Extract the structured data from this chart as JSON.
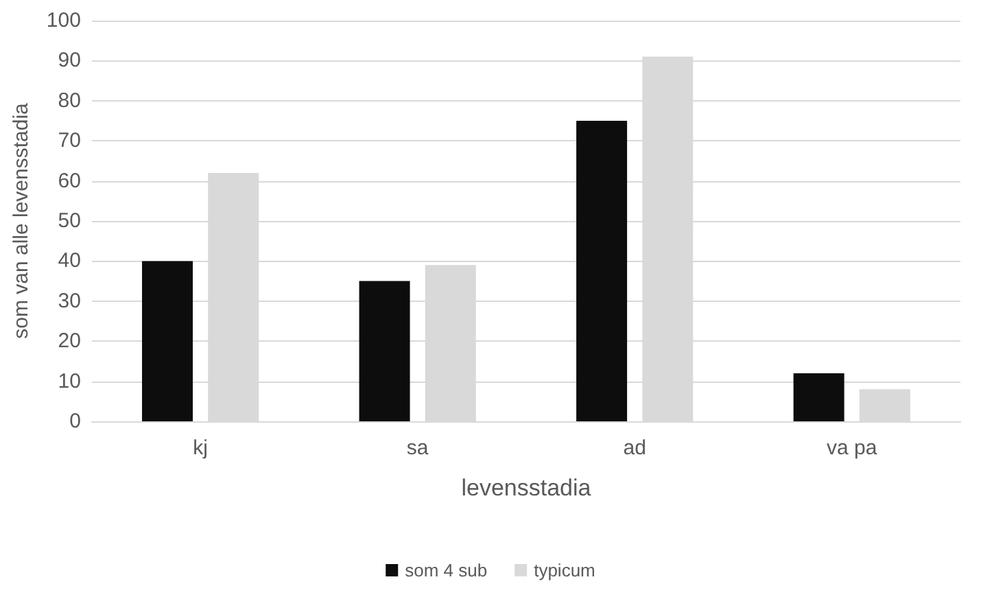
{
  "chart_data": {
    "type": "bar",
    "xlabel": "levensstadia",
    "ylabel": "som van alle levensstadia",
    "categories": [
      "kj",
      "sa",
      "ad",
      "va pa"
    ],
    "series": [
      {
        "name": "som 4 sub",
        "color": "#0d0d0d",
        "values": [
          40,
          35,
          75,
          12
        ]
      },
      {
        "name": "typicum",
        "color": "#d9d9d9",
        "values": [
          62,
          39,
          91,
          8
        ]
      }
    ],
    "ylim": [
      0,
      100
    ],
    "yticks": [
      0,
      10,
      20,
      30,
      40,
      50,
      60,
      70,
      80,
      90,
      100
    ],
    "grid": "y",
    "legend": "bottom"
  }
}
